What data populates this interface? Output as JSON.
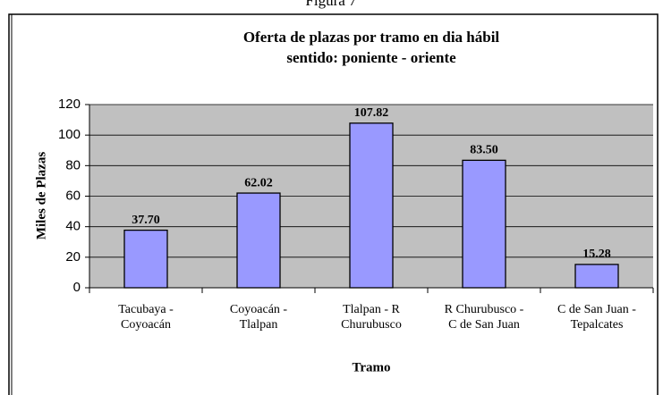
{
  "caption": "Figura 7",
  "chart_data": {
    "type": "bar",
    "title": [
      "Oferta de plazas por tramo en dia hábil",
      "sentido: poniente - oriente"
    ],
    "categories": [
      [
        "Tacubaya -",
        "Coyoacán"
      ],
      [
        "Coyoacán -",
        "Tlalpan"
      ],
      [
        "Tlalpan - R",
        "Churubusco"
      ],
      [
        "R Churubusco -",
        "C de San Juan"
      ],
      [
        "C de San Juan -",
        "Tepalcates"
      ]
    ],
    "values": [
      37.7,
      62.02,
      107.82,
      83.5,
      15.28
    ],
    "value_labels": [
      "37.70",
      "62.02",
      "107.82",
      "83.50",
      "15.28"
    ],
    "color": "#9999ff",
    "ylim": [
      0,
      120
    ],
    "yticks": [
      0,
      20,
      40,
      60,
      80,
      100,
      120
    ],
    "grid": true,
    "ylabel": "Miles de Plazas",
    "xlabel": "Tramo"
  }
}
